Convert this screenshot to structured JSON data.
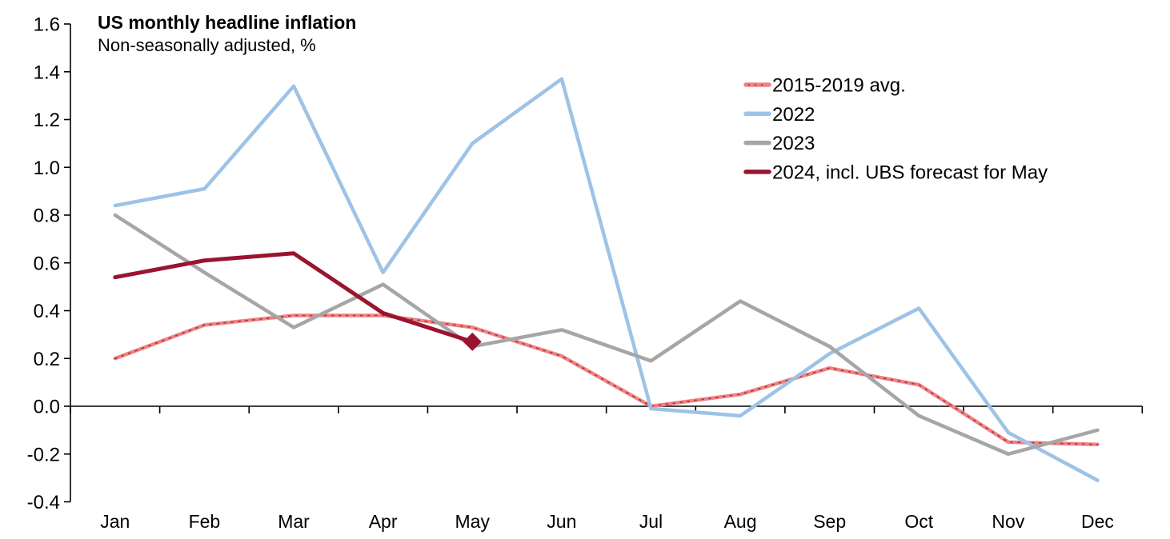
{
  "header": {
    "title": "US monthly headline inflation",
    "subtitle": "Non-seasonally adjusted, %"
  },
  "chart_data": {
    "type": "line",
    "title": "US monthly headline inflation",
    "subtitle": "Non-seasonally adjusted, %",
    "categories": [
      "Jan",
      "Feb",
      "Mar",
      "Apr",
      "May",
      "Jun",
      "Jul",
      "Aug",
      "Sep",
      "Oct",
      "Nov",
      "Dec"
    ],
    "ylim": [
      -0.4,
      1.6
    ],
    "ystep": 0.2,
    "ytick_labels": [
      "1.6",
      "1.4",
      "1.2",
      "1.0",
      "0.8",
      "0.6",
      "0.4",
      "0.2",
      "0.0",
      "-0.2",
      "-0.4"
    ],
    "grid": false,
    "legend_position": "top-right",
    "axis_color": "#000000",
    "series": [
      {
        "name": "2015-2019 avg.",
        "color": "#F28182",
        "dot_overlay_color": "#A53F45",
        "line_width": 4.5,
        "values": [
          0.2,
          0.34,
          0.38,
          0.38,
          0.33,
          0.21,
          0.0,
          0.05,
          0.16,
          0.09,
          -0.15,
          -0.16
        ]
      },
      {
        "name": "2022",
        "color": "#9DC3E6",
        "line_width": 4.5,
        "values": [
          0.84,
          0.91,
          1.34,
          0.56,
          1.1,
          1.37,
          -0.01,
          -0.04,
          0.22,
          0.41,
          -0.11,
          -0.31
        ]
      },
      {
        "name": "2023",
        "color": "#A6A6A6",
        "line_width": 4.5,
        "values": [
          0.8,
          0.56,
          0.33,
          0.51,
          0.25,
          0.32,
          0.19,
          0.44,
          0.25,
          -0.04,
          -0.2,
          -0.1
        ]
      },
      {
        "name": "2024, incl. UBS forecast for May",
        "color": "#9A1430",
        "line_width": 5,
        "values": [
          0.54,
          0.61,
          0.64,
          0.39,
          0.27,
          null,
          null,
          null,
          null,
          null,
          null,
          null
        ],
        "marker": {
          "shape": "diamond",
          "category": "May",
          "index": 4,
          "value": 0.27,
          "size": 23
        }
      }
    ]
  }
}
